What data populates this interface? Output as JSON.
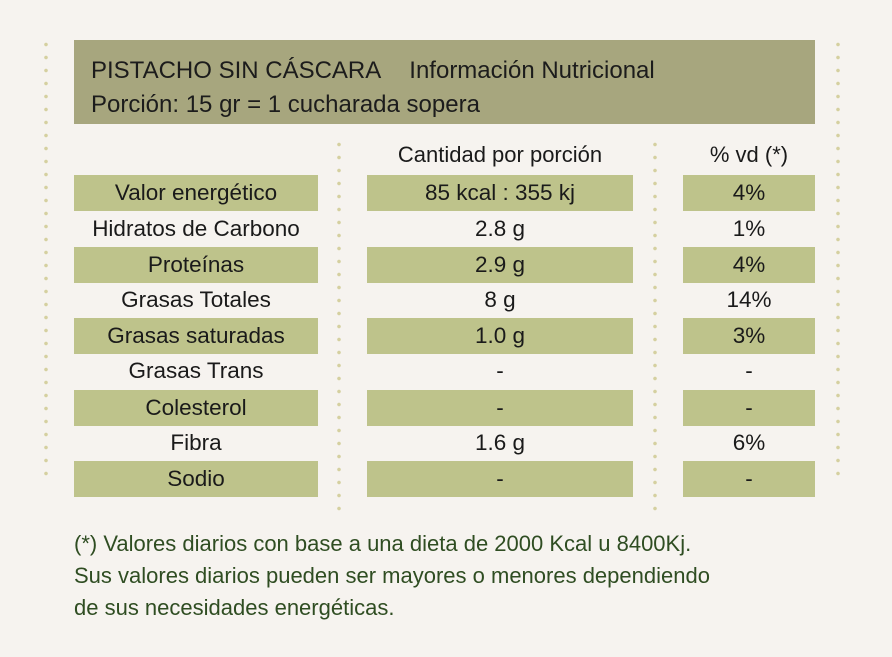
{
  "header": {
    "product": "PISTACHO SIN CÁSCARA",
    "label": "Información Nutricional",
    "serving": "Porción: 15 gr = 1 cucharada sopera"
  },
  "columns": {
    "amount": "Cantidad por porción",
    "dv": "% vd (*)"
  },
  "rows": [
    {
      "name": "Valor energético",
      "amount": "85 kcal : 355 kj",
      "dv": "4%"
    },
    {
      "name": "Hidratos de Carbono",
      "amount": "2.8 g",
      "dv": "1%"
    },
    {
      "name": "Proteínas",
      "amount": "2.9 g",
      "dv": "4%"
    },
    {
      "name": "Grasas Totales",
      "amount": "8 g",
      "dv": "14%"
    },
    {
      "name": "Grasas saturadas",
      "amount": "1.0 g",
      "dv": "3%"
    },
    {
      "name": "Grasas Trans",
      "amount": "-",
      "dv": "-"
    },
    {
      "name": "Colesterol",
      "amount": "-",
      "dv": "-"
    },
    {
      "name": "Fibra",
      "amount": "1.6 g",
      "dv": "6%"
    },
    {
      "name": "Sodio",
      "amount": "-",
      "dv": "-"
    }
  ],
  "footnote": {
    "line1": "(*) Valores diarios con base a una dieta de 2000 Kcal u 8400Kj.",
    "line2": "Sus valores diarios pueden ser mayores o menores dependiendo",
    "line3": "de sus necesidades energéticas."
  },
  "colors": {
    "background": "#f6f3ef",
    "header": "#a7a67e",
    "row_shade": "#bec38b",
    "footnote_text": "#2f4d22"
  }
}
